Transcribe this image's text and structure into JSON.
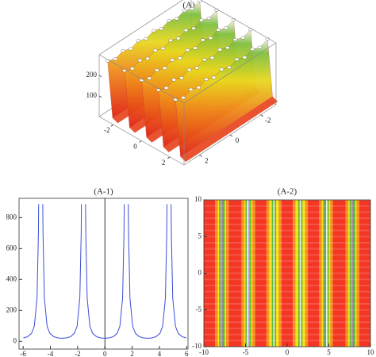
{
  "chart_data": [
    {
      "type": "surface3d",
      "title": "(A)",
      "xlim": [
        -3,
        3
      ],
      "ylim": [
        -3,
        3
      ],
      "zlim": [
        0,
        300
      ],
      "xticks": [
        -2,
        0,
        2
      ],
      "yticks": [
        2,
        0,
        -2
      ],
      "zticks": [
        100,
        200
      ]
    },
    {
      "type": "line",
      "title": "(A-1)",
      "color": "#3a4fd6",
      "x": [
        -5.98,
        -5.68,
        -5.38,
        -5.18,
        -4.98,
        -4.88,
        -4.86,
        -4.71,
        -4.56,
        -4.54,
        -4.44,
        -4.24,
        -4.04,
        -3.74,
        -3.44,
        -3.14,
        -2.84,
        -2.54,
        -2.24,
        -2.04,
        -1.84,
        -1.74,
        -1.72,
        -1.57,
        -1.42,
        -1.4,
        -1.3,
        -1.1,
        -0.9,
        -0.6,
        -0.3,
        0,
        0.3,
        0.6,
        0.9,
        1.1,
        1.3,
        1.4,
        1.42,
        1.57,
        1.72,
        1.74,
        1.84,
        2.04,
        2.24,
        2.54,
        2.84,
        3.14,
        3.44,
        3.74,
        4.04,
        4.24,
        4.44,
        4.54,
        4.56,
        4.71,
        4.86,
        4.88,
        4.98,
        5.18,
        5.38,
        5.68,
        5.98
      ],
      "values": [
        21.9,
        29.4,
        51.8,
        97.2,
        279,
        692,
        887,
        null,
        887,
        692,
        279,
        97.2,
        51.8,
        29.4,
        21.9,
        20,
        21.9,
        29.4,
        51.8,
        97.2,
        279,
        692,
        887,
        null,
        887,
        692,
        279,
        97.2,
        51.8,
        29.4,
        21.9,
        20,
        21.9,
        29.4,
        51.8,
        97.2,
        279,
        692,
        887,
        null,
        887,
        692,
        279,
        97.2,
        51.8,
        29.4,
        21.9,
        20,
        21.9,
        29.4,
        51.8,
        97.2,
        279,
        692,
        887,
        null,
        887,
        692,
        279,
        97.2,
        51.8,
        29.4,
        21.9
      ],
      "xlim": [
        -6.3,
        6.1
      ],
      "ylim": [
        -50,
        925
      ],
      "xticks": [
        -6,
        -4,
        -2,
        0,
        2,
        4,
        6
      ],
      "yticks": [
        0,
        200,
        400,
        600,
        800
      ]
    },
    {
      "type": "density",
      "title": "(A-2)",
      "xlim": [
        -10,
        10
      ],
      "ylim": [
        -10,
        10
      ],
      "xticks": [
        -10,
        -5,
        0,
        5,
        10
      ],
      "yticks": [
        -10,
        -5,
        0,
        5,
        10
      ]
    }
  ]
}
